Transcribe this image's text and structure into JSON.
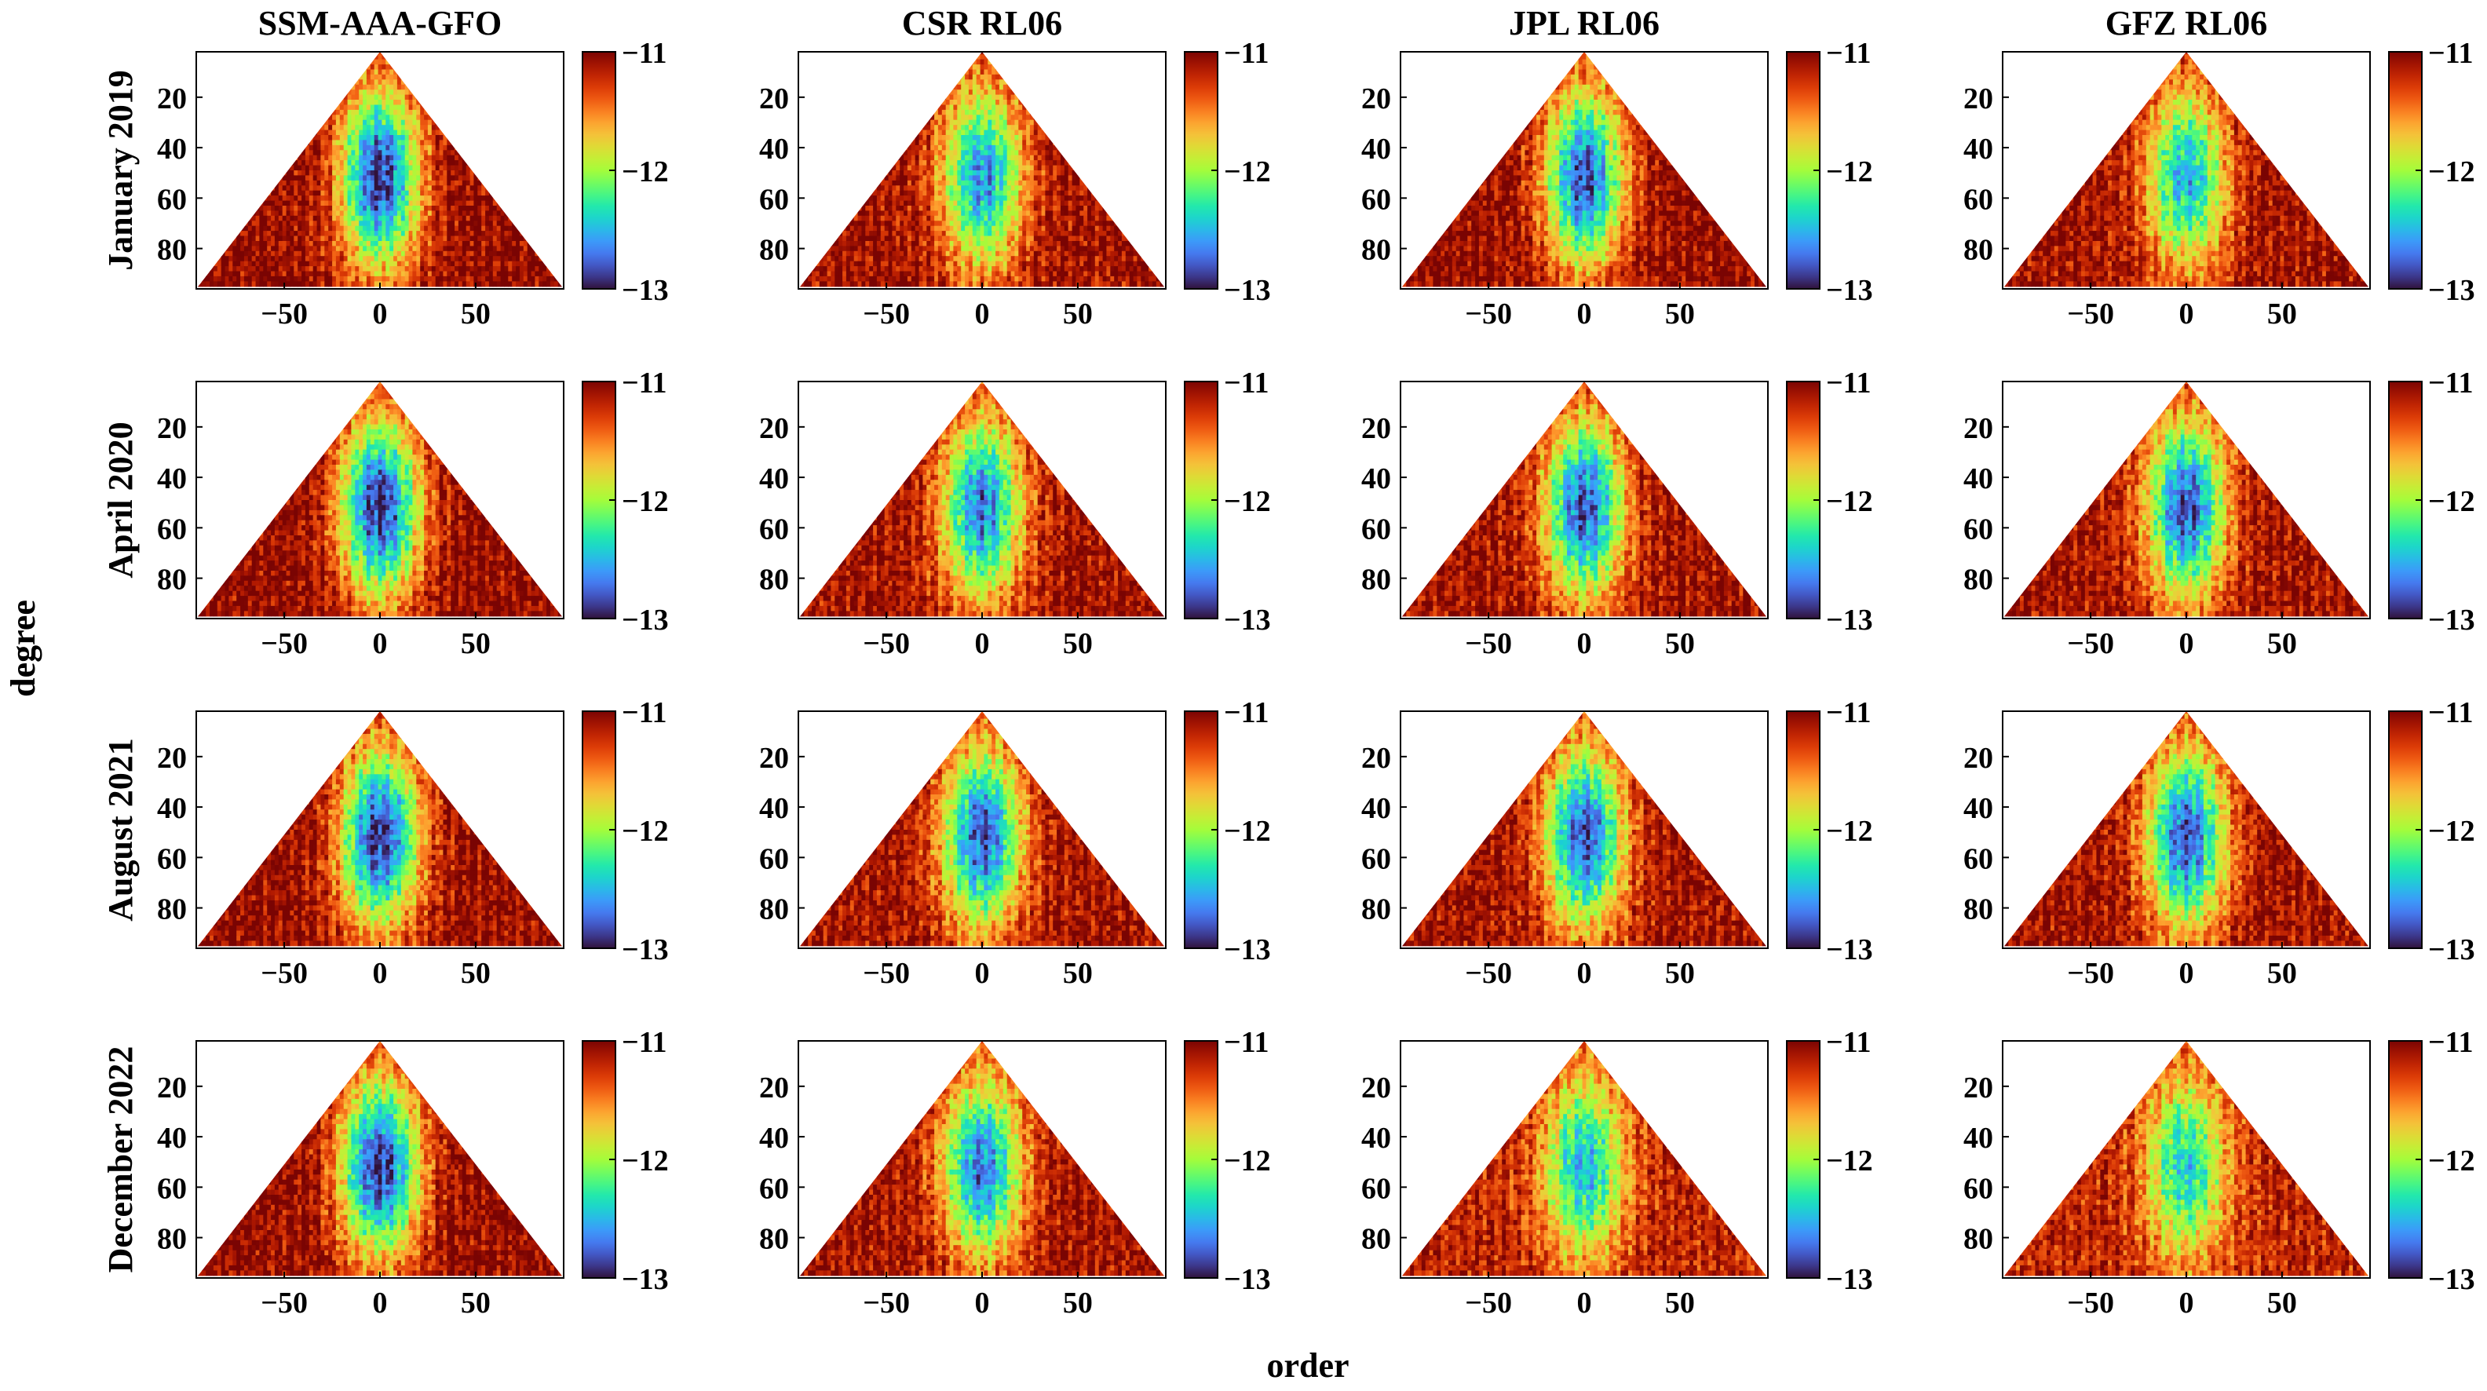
{
  "chart_data": {
    "type": "heatmap",
    "title": "",
    "xlabel": "order",
    "ylabel": "degree",
    "columns": [
      "SSM-AAA-GFO",
      "CSR RL06",
      "JPL RL06",
      "GFZ RL06"
    ],
    "rows": [
      "January 2019",
      "April 2020",
      "August 2021",
      "December 2022"
    ],
    "xlim": [
      -96,
      96
    ],
    "ylim": [
      96,
      2
    ],
    "xticks": [
      -50,
      0,
      50
    ],
    "xtick_labels": [
      "−50",
      "0",
      "50"
    ],
    "yticks": [
      20,
      40,
      60,
      80
    ],
    "ytick_labels": [
      "20",
      "40",
      "60",
      "80"
    ],
    "colorbar": {
      "range": [
        -13,
        -11
      ],
      "ticks": [
        -11,
        -12,
        -13
      ],
      "tick_labels": [
        "−11",
        "−12",
        "−13"
      ],
      "colormap": "turbo"
    },
    "colormap_stops": [
      "#30123b",
      "#4145ab",
      "#4675ed",
      "#39a2fc",
      "#1bcfd4",
      "#24eca6",
      "#61fc6c",
      "#a4fc3b",
      "#d1e834",
      "#f3c63a",
      "#fe9b2d",
      "#f36315",
      "#d93806",
      "#b11901",
      "#7a0403"
    ],
    "panels": [
      {
        "row": "January 2019",
        "column": "SSM-AAA-GFO",
        "core_min": -12.9,
        "edge_max": -11.05
      },
      {
        "row": "January 2019",
        "column": "CSR RL06",
        "core_min": -12.6,
        "edge_max": -11.1
      },
      {
        "row": "January 2019",
        "column": "JPL RL06",
        "core_min": -12.8,
        "edge_max": -11.05
      },
      {
        "row": "January 2019",
        "column": "GFZ RL06",
        "core_min": -12.5,
        "edge_max": -11.1
      },
      {
        "row": "April 2020",
        "column": "SSM-AAA-GFO",
        "core_min": -12.9,
        "edge_max": -11.05
      },
      {
        "row": "April 2020",
        "column": "CSR RL06",
        "core_min": -12.7,
        "edge_max": -11.1
      },
      {
        "row": "April 2020",
        "column": "JPL RL06",
        "core_min": -12.8,
        "edge_max": -11.1
      },
      {
        "row": "April 2020",
        "column": "GFZ RL06",
        "core_min": -12.8,
        "edge_max": -11.1
      },
      {
        "row": "August 2021",
        "column": "SSM-AAA-GFO",
        "core_min": -12.9,
        "edge_max": -11.05
      },
      {
        "row": "August 2021",
        "column": "CSR RL06",
        "core_min": -12.8,
        "edge_max": -11.1
      },
      {
        "row": "August 2021",
        "column": "JPL RL06",
        "core_min": -12.8,
        "edge_max": -11.1
      },
      {
        "row": "August 2021",
        "column": "GFZ RL06",
        "core_min": -12.8,
        "edge_max": -11.1
      },
      {
        "row": "December 2022",
        "column": "SSM-AAA-GFO",
        "core_min": -12.9,
        "edge_max": -11.05
      },
      {
        "row": "December 2022",
        "column": "CSR RL06",
        "core_min": -12.7,
        "edge_max": -11.1
      },
      {
        "row": "December 2022",
        "column": "JPL RL06",
        "core_min": -12.5,
        "edge_max": -11.2
      },
      {
        "row": "December 2022",
        "column": "GFZ RL06",
        "core_min": -12.4,
        "edge_max": -11.2
      }
    ]
  }
}
